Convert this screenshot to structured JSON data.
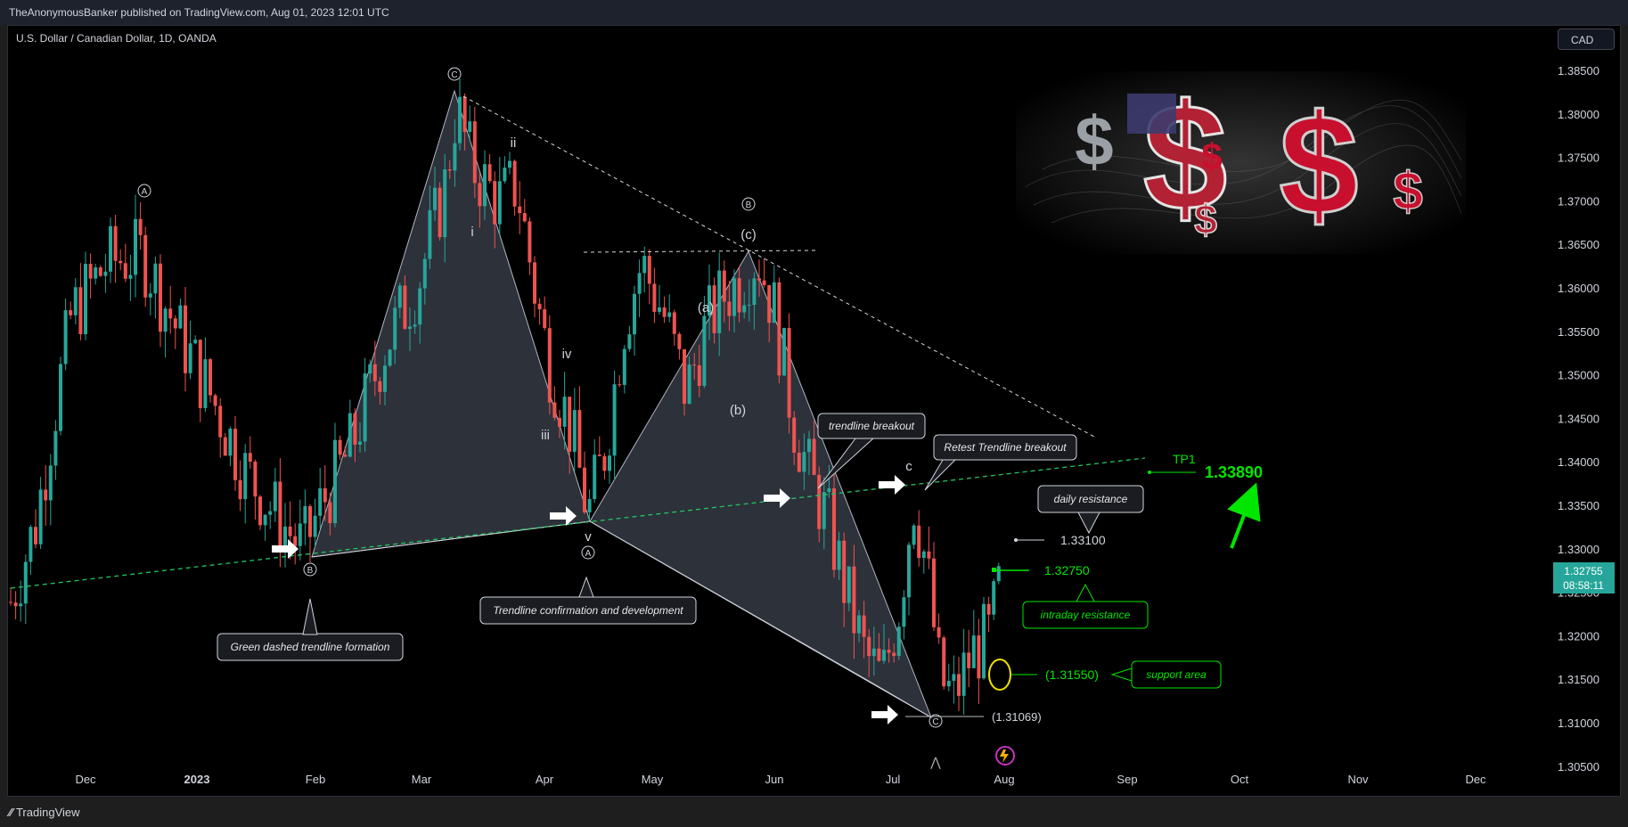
{
  "header": {
    "publisher": "TheAnonymousBanker published on TradingView.com, Aug 01, 2023 12:01 UTC"
  },
  "chart": {
    "symbol": "U.S. Dollar / Canadian Dollar, 1D, OANDA",
    "currency_button": "CAD",
    "last_price": "1.32755",
    "countdown": "08:58:11"
  },
  "chart_data": {
    "type": "candlestick",
    "instrument": "U.S. Dollar / Canadian Dollar",
    "timeframe": "1D",
    "x_tick_labels": [
      "Dec",
      "2023",
      "Feb",
      "Mar",
      "Apr",
      "May",
      "Jun",
      "Jul",
      "Aug",
      "Sep",
      "Oct",
      "Nov",
      "Dec"
    ],
    "y_tick_labels": [
      "1.38500",
      "1.38000",
      "1.37500",
      "1.37000",
      "1.36500",
      "1.36000",
      "1.35500",
      "1.35000",
      "1.34500",
      "1.34000",
      "1.33500",
      "1.33000",
      "1.32500",
      "1.32000",
      "1.31500",
      "1.31000",
      "1.30500"
    ],
    "ylim": [
      1.305,
      1.386
    ],
    "wave_labels": [
      "A",
      "B",
      "C",
      "ii",
      "i",
      "iv",
      "iii",
      "v",
      "A",
      "B",
      "(c)",
      "(a)",
      "(b)",
      "c",
      "C"
    ],
    "annotations": [
      {
        "text": "Green dashed trendline formation"
      },
      {
        "text": "Trendline confirmation and development"
      },
      {
        "text": "trendline breakout"
      },
      {
        "text": "Retest Trendline breakout"
      },
      {
        "text": "daily resistance"
      },
      {
        "text": "intraday resistance"
      },
      {
        "text": "support area"
      }
    ],
    "levels": [
      {
        "label": "TP1",
        "value": "1.33890"
      },
      {
        "value": "1.33100"
      },
      {
        "value": "1.32750"
      },
      {
        "value": "(1.31550)"
      },
      {
        "value": "(1.31069)"
      }
    ],
    "colors": {
      "up": "#26a69a",
      "down": "#ef5350",
      "trend": "#22c55e",
      "accent_green": "#00e600"
    }
  },
  "footer": {
    "brand": "TradingView"
  }
}
